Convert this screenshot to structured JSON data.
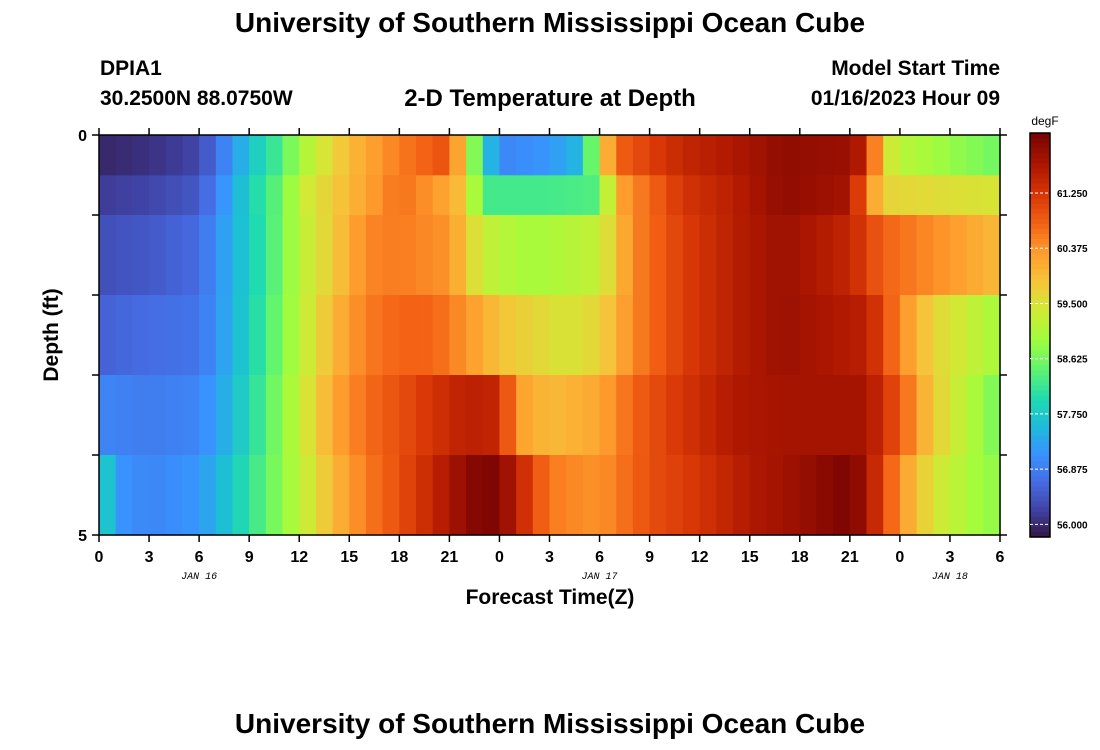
{
  "header": {
    "title": "University of Southern Mississippi Ocean Cube",
    "station_id": "DPIA1",
    "station_coords": "30.2500N  88.0750W",
    "plot_title": "2-D Temperature at Depth",
    "model_start_label": "Model Start Time",
    "model_start_value": "01/16/2023 Hour 09"
  },
  "footer": {
    "title": "University of Southern Mississippi Ocean Cube"
  },
  "chart_data": {
    "type": "heatmap",
    "title": "2-D Temperature at Depth",
    "xlabel": "Forecast Time(Z)",
    "ylabel": "Depth (ft)",
    "colorbar_unit": "degF",
    "colorbar_ticks": [
      "56.000",
      "56.875",
      "57.750",
      "58.625",
      "59.500",
      "60.375",
      "61.250"
    ],
    "colorbar_range": [
      55.8,
      62.2
    ],
    "x_tick_labels": [
      "0",
      "3",
      "6",
      "9",
      "12",
      "15",
      "18",
      "21",
      "0",
      "3",
      "6",
      "9",
      "12",
      "15",
      "18",
      "21",
      "0",
      "3",
      "6"
    ],
    "date_labels": [
      {
        "label": "JAN 16",
        "hour_index": 6
      },
      {
        "label": "JAN 17",
        "hour_index": 30
      },
      {
        "label": "JAN 18",
        "hour_index": 51
      }
    ],
    "y_tick_labels": [
      "0",
      "5"
    ],
    "y_range": [
      0,
      5
    ],
    "hours_start_index": 0,
    "hours_count": 54,
    "depth_rows": 5,
    "anchors": [
      [
        [
          0,
          56.0
        ],
        [
          3,
          56.1
        ],
        [
          6,
          56.3
        ],
        [
          8,
          57.2
        ],
        [
          9,
          57.7
        ],
        [
          11,
          58.4
        ],
        [
          12,
          59.0
        ],
        [
          15,
          60.0
        ],
        [
          18,
          60.6
        ],
        [
          21,
          61.0
        ],
        [
          22,
          59.5
        ],
        [
          23,
          58.0
        ],
        [
          24,
          57.0
        ],
        [
          27,
          57.2
        ],
        [
          29,
          57.6
        ],
        [
          30,
          59.5
        ],
        [
          31,
          60.8
        ],
        [
          35,
          61.5
        ],
        [
          38,
          61.7
        ],
        [
          41,
          62.0
        ],
        [
          45,
          61.9
        ],
        [
          46,
          61.5
        ],
        [
          47,
          59.6
        ],
        [
          48,
          59.2
        ],
        [
          54,
          58.6
        ]
      ],
      [
        [
          0,
          56.2
        ],
        [
          3,
          56.3
        ],
        [
          6,
          56.5
        ],
        [
          8,
          57.4
        ],
        [
          9,
          57.9
        ],
        [
          11,
          58.6
        ],
        [
          12,
          59.3
        ],
        [
          14,
          59.8
        ],
        [
          18,
          60.7
        ],
        [
          21,
          60.2
        ],
        [
          22,
          59.8
        ],
        [
          23,
          58.3
        ],
        [
          27,
          58.3
        ],
        [
          30,
          58.4
        ],
        [
          31,
          60.2
        ],
        [
          35,
          61.3
        ],
        [
          38,
          61.6
        ],
        [
          41,
          62.0
        ],
        [
          45,
          61.8
        ],
        [
          46,
          60.6
        ],
        [
          47,
          59.7
        ],
        [
          54,
          59.5
        ]
      ],
      [
        [
          0,
          56.4
        ],
        [
          3,
          56.5
        ],
        [
          6,
          56.7
        ],
        [
          8,
          57.5
        ],
        [
          10,
          58.2
        ],
        [
          12,
          59.2
        ],
        [
          14,
          59.8
        ],
        [
          16,
          60.5
        ],
        [
          18,
          60.6
        ],
        [
          21,
          60.4
        ],
        [
          23,
          59.3
        ],
        [
          26,
          59.0
        ],
        [
          30,
          59.3
        ],
        [
          32,
          60.5
        ],
        [
          35,
          61.2
        ],
        [
          38,
          61.6
        ],
        [
          41,
          61.9
        ],
        [
          45,
          61.5
        ],
        [
          47,
          60.8
        ],
        [
          54,
          60.0
        ]
      ],
      [
        [
          0,
          56.6
        ],
        [
          3,
          56.7
        ],
        [
          6,
          56.8
        ],
        [
          8,
          57.5
        ],
        [
          10,
          58.3
        ],
        [
          12,
          59.2
        ],
        [
          14,
          60.0
        ],
        [
          16,
          60.6
        ],
        [
          18,
          60.8
        ],
        [
          20,
          60.8
        ],
        [
          22,
          60.4
        ],
        [
          24,
          59.9
        ],
        [
          28,
          59.5
        ],
        [
          30,
          59.7
        ],
        [
          32,
          60.5
        ],
        [
          35,
          61.2
        ],
        [
          38,
          61.6
        ],
        [
          41,
          61.9
        ],
        [
          46,
          61.6
        ],
        [
          48,
          60.5
        ],
        [
          50,
          59.7
        ],
        [
          54,
          59.0
        ]
      ],
      [
        [
          0,
          57.0
        ],
        [
          3,
          56.9
        ],
        [
          6,
          57.0
        ],
        [
          8,
          57.6
        ],
        [
          10,
          58.4
        ],
        [
          12,
          59.3
        ],
        [
          14,
          60.2
        ],
        [
          16,
          60.7
        ],
        [
          18,
          61.0
        ],
        [
          20,
          61.3
        ],
        [
          22,
          61.6
        ],
        [
          24,
          61.5
        ],
        [
          25,
          60.3
        ],
        [
          27,
          60.0
        ],
        [
          30,
          60.2
        ],
        [
          32,
          60.8
        ],
        [
          35,
          61.3
        ],
        [
          38,
          61.7
        ],
        [
          41,
          61.8
        ],
        [
          46,
          61.8
        ],
        [
          48,
          60.9
        ],
        [
          50,
          59.8
        ],
        [
          54,
          58.6
        ]
      ],
      [
        [
          0,
          58.2
        ],
        [
          1,
          57.2
        ],
        [
          3,
          57.0
        ],
        [
          6,
          57.2
        ],
        [
          8,
          57.8
        ],
        [
          10,
          58.5
        ],
        [
          12,
          59.2
        ],
        [
          14,
          60.0
        ],
        [
          16,
          60.6
        ],
        [
          18,
          61.0
        ],
        [
          20,
          61.5
        ],
        [
          22,
          62.0
        ],
        [
          23,
          62.2
        ],
        [
          24,
          62.1
        ],
        [
          25,
          61.6
        ],
        [
          27,
          60.6
        ],
        [
          30,
          60.4
        ],
        [
          33,
          61.0
        ],
        [
          36,
          61.3
        ],
        [
          39,
          61.7
        ],
        [
          43,
          62.0
        ],
        [
          45,
          62.2
        ],
        [
          46,
          61.8
        ],
        [
          48,
          60.4
        ],
        [
          50,
          59.5
        ],
        [
          53,
          58.9
        ]
      ]
    ]
  }
}
